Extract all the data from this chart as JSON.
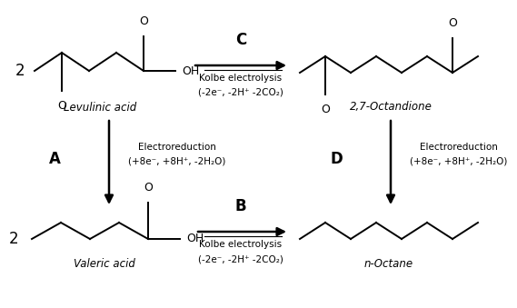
{
  "bg_color": "#ffffff",
  "text_color": "#000000",
  "fig_width": 5.69,
  "fig_height": 3.39,
  "labels": {
    "levulinic_acid": "Levulinic acid",
    "valeric_acid": "Valeric acid",
    "octandione": "2,7-Octandione",
    "noctane": "n-Octane",
    "route_A": "A",
    "route_B": "B",
    "route_C": "C",
    "route_D": "D",
    "kolbe_top": "Kolbe electrolysis",
    "kolbe_top_sub": "(-2e⁻, -2H⁺ -2CO₂)",
    "kolbe_bot": "Kolbe electrolysis",
    "kolbe_bot_sub": "(-2e⁻, -2H⁺ -2CO₂)",
    "electro_left": "Electroreduction",
    "electro_left_sub": "(+8e⁻, +8H⁺, -2H₂O)",
    "electro_right": "Electroreduction",
    "electro_right_sub": "(+8e⁻, +8H⁺, -2H₂O)"
  }
}
